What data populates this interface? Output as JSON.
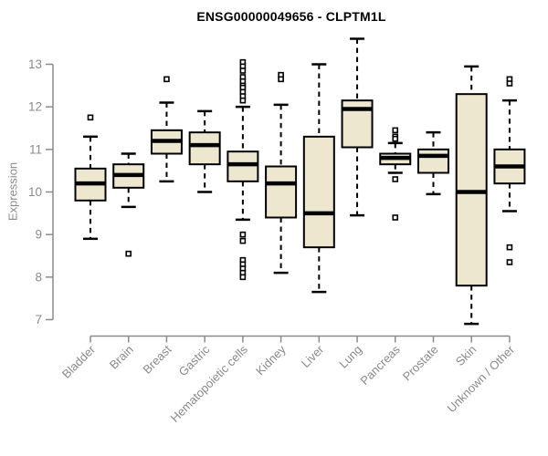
{
  "title": "ENSG00000049656 - CLPTM1L",
  "colors": {
    "box_fill": "#EDE7D0",
    "box_stroke": "#000000",
    "median": "#000000",
    "whisker": "#000000",
    "outlier": "#000000",
    "axis": "#8a8a8a",
    "tick_label": "#8a8a8a",
    "title": "#000000",
    "background": "#ffffff"
  },
  "chart_data": {
    "type": "boxplot",
    "title": "ENSG00000049656 - CLPTM1L",
    "xlabel": "",
    "ylabel": "Expression",
    "ylim": [
      7,
      13
    ],
    "yticks": [
      7,
      8,
      9,
      10,
      11,
      12,
      13
    ],
    "grid": false,
    "legend": null,
    "x_label_rotation_deg": 45,
    "categories": [
      "Bladder",
      "Brain",
      "Breast",
      "Gastric",
      "Hematopoietic cells",
      "Kidney",
      "Liver",
      "Lung",
      "Pancreas",
      "Prostate",
      "Skin",
      "Unknown / Other"
    ],
    "boxes": [
      {
        "label": "Bladder",
        "whisker_low": 8.9,
        "q1": 9.8,
        "median": 10.2,
        "q3": 10.55,
        "whisker_high": 11.3,
        "outliers": [
          11.75
        ]
      },
      {
        "label": "Brain",
        "whisker_low": 9.65,
        "q1": 10.1,
        "median": 10.4,
        "q3": 10.65,
        "whisker_high": 10.9,
        "outliers": [
          8.55
        ]
      },
      {
        "label": "Breast",
        "whisker_low": 10.25,
        "q1": 10.9,
        "median": 11.2,
        "q3": 11.45,
        "whisker_high": 12.1,
        "outliers": [
          12.65
        ]
      },
      {
        "label": "Gastric",
        "whisker_low": 10.0,
        "q1": 10.65,
        "median": 11.1,
        "q3": 11.4,
        "whisker_high": 11.9,
        "outliers": []
      },
      {
        "label": "Hematopoietic cells",
        "whisker_low": 9.35,
        "q1": 10.25,
        "median": 10.65,
        "q3": 10.95,
        "whisker_high": 12.0,
        "outliers": [
          13.05,
          12.95,
          12.85,
          12.7,
          12.6,
          12.5,
          12.45,
          12.35,
          12.25,
          12.15,
          9.0,
          8.85,
          8.4,
          8.3,
          8.2,
          8.1,
          8.0
        ]
      },
      {
        "label": "Kidney",
        "whisker_low": 8.1,
        "q1": 9.4,
        "median": 10.2,
        "q3": 10.6,
        "whisker_high": 12.05,
        "outliers": [
          12.75,
          12.65
        ]
      },
      {
        "label": "Liver",
        "whisker_low": 7.65,
        "q1": 8.7,
        "median": 9.5,
        "q3": 11.3,
        "whisker_high": 13.0,
        "outliers": []
      },
      {
        "label": "Lung",
        "whisker_low": 9.45,
        "q1": 11.05,
        "median": 11.95,
        "q3": 12.15,
        "whisker_high": 13.6,
        "outliers": []
      },
      {
        "label": "Pancreas",
        "whisker_low": 10.45,
        "q1": 10.65,
        "median": 10.8,
        "q3": 10.9,
        "whisker_high": 11.15,
        "outliers": [
          11.45,
          11.3,
          11.25,
          10.3,
          9.4
        ]
      },
      {
        "label": "Prostate",
        "whisker_low": 9.95,
        "q1": 10.45,
        "median": 10.85,
        "q3": 11.0,
        "whisker_high": 11.4,
        "outliers": []
      },
      {
        "label": "Skin",
        "whisker_low": 6.9,
        "q1": 7.8,
        "median": 10.0,
        "q3": 12.3,
        "whisker_high": 12.95,
        "outliers": []
      },
      {
        "label": "Unknown / Other",
        "whisker_low": 9.55,
        "q1": 10.2,
        "median": 10.6,
        "q3": 11.0,
        "whisker_high": 12.15,
        "outliers": [
          12.65,
          12.55,
          8.7,
          8.35
        ]
      }
    ]
  }
}
